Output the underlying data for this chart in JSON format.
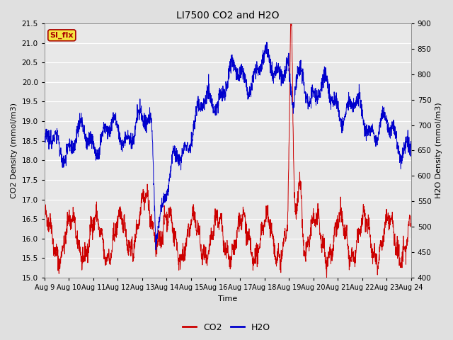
{
  "title": "LI7500 CO2 and H2O",
  "xlabel": "Time",
  "ylabel_left": "CO2 Density (mmol/m3)",
  "ylabel_right": "H2O Density (mmol/m3)",
  "ylim_left": [
    15.0,
    21.5
  ],
  "ylim_right": [
    400,
    900
  ],
  "yticks_left": [
    15.0,
    15.5,
    16.0,
    16.5,
    17.0,
    17.5,
    18.0,
    18.5,
    19.0,
    19.5,
    20.0,
    20.5,
    21.0,
    21.5
  ],
  "yticks_right": [
    400,
    450,
    500,
    550,
    600,
    650,
    700,
    750,
    800,
    850,
    900
  ],
  "xtick_labels": [
    "Aug 9",
    "Aug 10",
    "Aug 11",
    "Aug 12",
    "Aug 13",
    "Aug 14",
    "Aug 15",
    "Aug 16",
    "Aug 17",
    "Aug 18",
    "Aug 19",
    "Aug 20",
    "Aug 21",
    "Aug 22",
    "Aug 23",
    "Aug 24"
  ],
  "co2_color": "#cc0000",
  "h2o_color": "#0000cc",
  "fig_bg_color": "#e0e0e0",
  "plot_bg_color": "#e8e8e8",
  "grid_color": "#ffffff",
  "annotation_text": "SI_flx",
  "annotation_bg": "#f5e642",
  "annotation_border": "#aa0000",
  "legend_co2": "CO2",
  "legend_h2o": "H2O",
  "n_points": 2000,
  "seed": 42
}
